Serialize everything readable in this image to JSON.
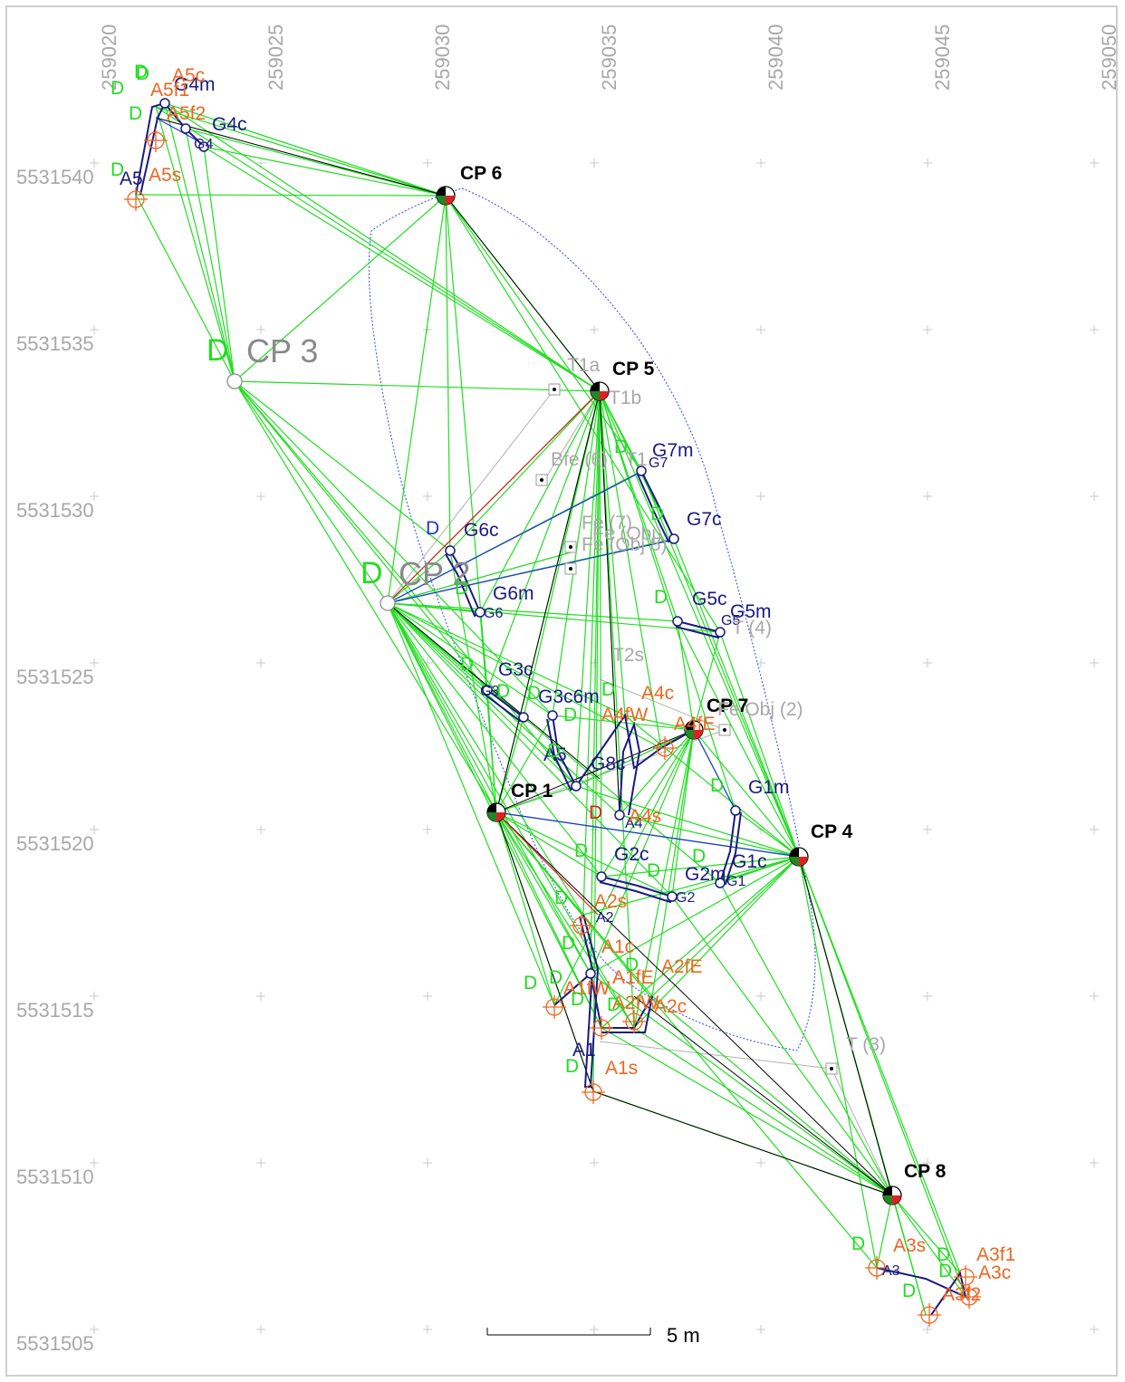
{
  "axes": {
    "x_ticks": [
      "259020",
      "259025",
      "259030",
      "259035",
      "259040",
      "259045",
      "259050"
    ],
    "y_ticks": [
      "5531540",
      "5531535",
      "5531530",
      "5531525",
      "5531520",
      "5531515",
      "5531510",
      "5531505"
    ]
  },
  "scale_bar": {
    "label": "5 m"
  },
  "colors": {
    "green": "#22dd22",
    "navy": "#1a1a80",
    "orange": "#ee6622",
    "gray": "#a8a8a8",
    "blue_dotted": "#3344ee",
    "red": "#dd2222"
  },
  "control_points": {
    "cp6": "CP 6",
    "cp5": "CP 5",
    "cp7": "CP 7",
    "cp1": "CP 1",
    "cp4": "CP 4",
    "cp8": "CP 8",
    "cp3": "CP 3",
    "cp2": "CP 2"
  },
  "navy_labels": {
    "g4m": "G4m",
    "g4c": "G4c",
    "g4": "G4",
    "a5": "A5",
    "g7m": "G7m",
    "g7": "G7",
    "g7c": "G7c",
    "g6c": "G6c",
    "g6m": "G6m",
    "g6": "G6",
    "g5c": "G5c",
    "g5m": "G5m",
    "g5": "G5",
    "g3c": "G3c",
    "g3": "G3",
    "g3m": "G3c6m",
    "g8c": "G8c",
    "a5b": "A5",
    "a4": "A4",
    "g1m": "G1m",
    "g1c": "G1c",
    "g1": "G1",
    "g2c": "G2c",
    "g2m": "G2m",
    "g2": "G2",
    "a2": "A2",
    "a1": "A1",
    "a3": "A3"
  },
  "orange_labels": {
    "a5c": "A5c",
    "a5f1": "A5f1",
    "a5f2": "A5f2",
    "a5s": "A5s",
    "a4c": "A4c",
    "a4fw": "A4fW",
    "a4fe": "A4fE",
    "a4s": "A4s",
    "a2s": "A2s",
    "a1c": "A1c",
    "a2fe": "A2fE",
    "a1fw": "A1fW",
    "a1fe": "A1fE",
    "a2fw": "A2fW",
    "a2c": "A2c",
    "a1s": "A1s",
    "a3s": "A3s",
    "a3f1": "A3f1",
    "a3c": "A3c",
    "a3f2": "A3f2"
  },
  "gray_labels": {
    "t1a": "T1a",
    "t1b": "T1b",
    "bfe": "Bfe (6)",
    "fe7": "Fe (7)",
    "t1": "T1",
    "fe_obj5": "Fe (Obj 5)",
    "fe_obj": "Fe (Obj)",
    "t4": "T (4)",
    "t2s": "T2s",
    "obj2": "Fe Obj (2)",
    "t3": "T (3)"
  },
  "d_markers": {
    "d": "D",
    "d_red": "D",
    "d_blue": "D"
  }
}
